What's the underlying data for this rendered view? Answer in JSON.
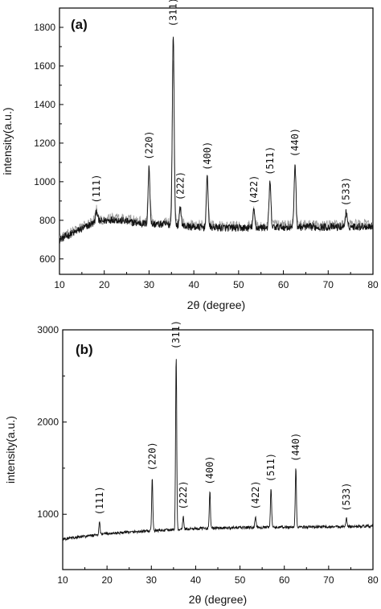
{
  "chart_data": [
    {
      "type": "line",
      "panel_label": "(a)",
      "xlabel": "2θ (degree)",
      "ylabel": "intensity(a.u.)",
      "xlim": [
        10,
        80
      ],
      "ylim": [
        520,
        1900
      ],
      "x_ticks": [
        10,
        20,
        30,
        40,
        50,
        60,
        70,
        80
      ],
      "y_ticks": [
        600,
        800,
        1000,
        1200,
        1400,
        1600,
        1800
      ],
      "grid": false,
      "baseline": [
        [
          10,
          700
        ],
        [
          14,
          745
        ],
        [
          18,
          790
        ],
        [
          22,
          805
        ],
        [
          26,
          790
        ],
        [
          30,
          780
        ],
        [
          34,
          780
        ],
        [
          40,
          765
        ],
        [
          50,
          760
        ],
        [
          60,
          765
        ],
        [
          70,
          765
        ],
        [
          80,
          770
        ]
      ],
      "peaks": [
        {
          "label": "(111)",
          "x": 18.3,
          "y": 855
        },
        {
          "label": "(220)",
          "x": 30.0,
          "y": 1080
        },
        {
          "label": "(311)",
          "x": 35.4,
          "y": 1770
        },
        {
          "label": "(222)",
          "x": 37.0,
          "y": 870
        },
        {
          "label": "(400)",
          "x": 43.0,
          "y": 1025
        },
        {
          "label": "(422)",
          "x": 53.4,
          "y": 850
        },
        {
          "label": "(511)",
          "x": 57.0,
          "y": 1000
        },
        {
          "label": "(440)",
          "x": 62.6,
          "y": 1095
        },
        {
          "label": "(533)",
          "x": 74.0,
          "y": 840
        }
      ]
    },
    {
      "type": "line",
      "panel_label": "(b)",
      "xlabel": "2θ (degree)",
      "ylabel": "intensity(a.u.)",
      "xlim": [
        10,
        80
      ],
      "ylim": [
        400,
        3000
      ],
      "x_ticks": [
        10,
        20,
        30,
        40,
        50,
        60,
        70,
        80
      ],
      "y_ticks": [
        1000,
        2000,
        3000
      ],
      "grid": false,
      "baseline": [
        [
          10,
          730
        ],
        [
          20,
          790
        ],
        [
          30,
          820
        ],
        [
          40,
          845
        ],
        [
          50,
          855
        ],
        [
          60,
          860
        ],
        [
          70,
          865
        ],
        [
          80,
          870
        ]
      ],
      "peaks": [
        {
          "label": "(111)",
          "x": 18.3,
          "y": 920
        },
        {
          "label": "(220)",
          "x": 30.2,
          "y": 1400
        },
        {
          "label": "(311)",
          "x": 35.6,
          "y": 2720
        },
        {
          "label": "(222)",
          "x": 37.2,
          "y": 980
        },
        {
          "label": "(400)",
          "x": 43.2,
          "y": 1250
        },
        {
          "label": "(422)",
          "x": 53.5,
          "y": 980
        },
        {
          "label": "(511)",
          "x": 57.0,
          "y": 1280
        },
        {
          "label": "(440)",
          "x": 62.6,
          "y": 1500
        },
        {
          "label": "(533)",
          "x": 74.0,
          "y": 960
        }
      ]
    }
  ]
}
